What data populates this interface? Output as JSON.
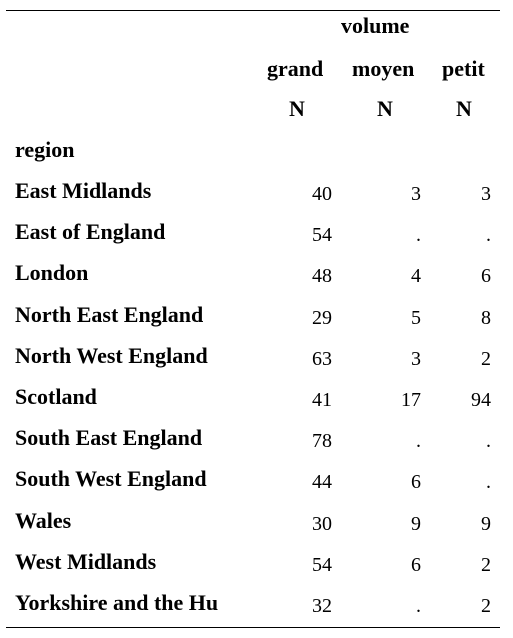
{
  "header": {
    "spanner": "volume",
    "columns": [
      "grand",
      "moyen",
      "petit"
    ],
    "stat": [
      "N",
      "N",
      "N"
    ],
    "row_var": "region"
  },
  "rows": [
    {
      "label": "East Midlands",
      "grand": "40",
      "moyen": "3",
      "petit": "3"
    },
    {
      "label": "East of England",
      "grand": "54",
      "moyen": ".",
      "petit": "."
    },
    {
      "label": "London",
      "grand": "48",
      "moyen": "4",
      "petit": "6"
    },
    {
      "label": "North East England",
      "grand": "29",
      "moyen": "5",
      "petit": "8"
    },
    {
      "label": "North West England",
      "grand": "63",
      "moyen": "3",
      "petit": "2"
    },
    {
      "label": "Scotland",
      "grand": "41",
      "moyen": "17",
      "petit": "94"
    },
    {
      "label": "South East England",
      "grand": "78",
      "moyen": ".",
      "petit": "."
    },
    {
      "label": "South West England",
      "grand": "44",
      "moyen": "6",
      "petit": "."
    },
    {
      "label": "Wales",
      "grand": "30",
      "moyen": "9",
      "petit": "9"
    },
    {
      "label": "West Midlands",
      "grand": "54",
      "moyen": "6",
      "petit": "2"
    },
    {
      "label": "Yorkshire and the Hu",
      "grand": "32",
      "moyen": ".",
      "petit": "2"
    }
  ]
}
